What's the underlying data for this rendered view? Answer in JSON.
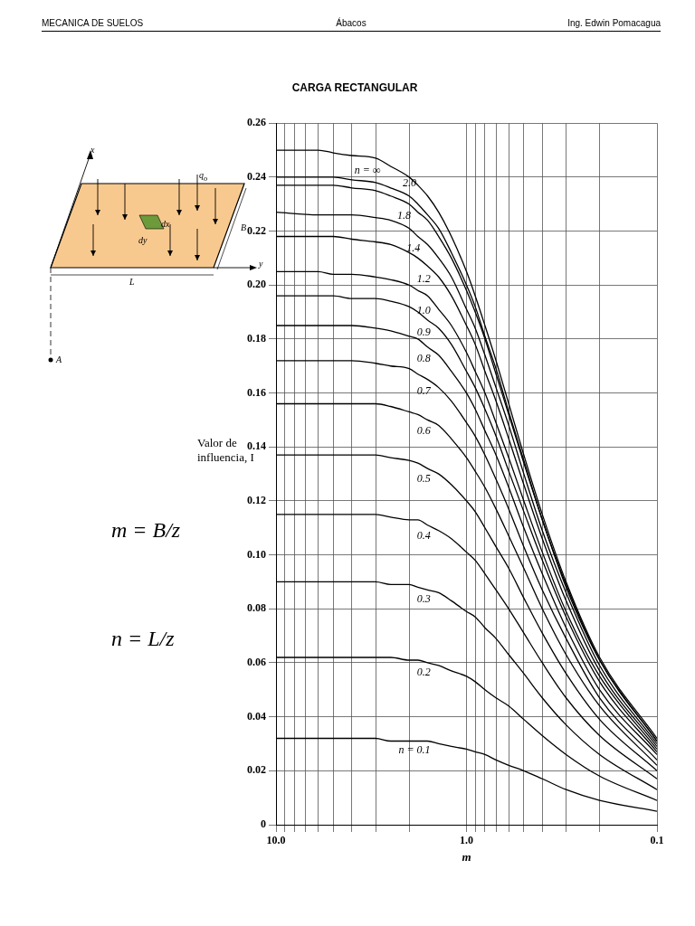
{
  "chart_data": {
    "type": "line",
    "title": "CARGA RECTANGULAR",
    "xlabel": "m",
    "ylabel": "Valor de influencia, I",
    "log": "x",
    "grid": true,
    "legend": false,
    "marker": "none",
    "line_style": "solid",
    "annotations": [
      "MECANICA DE SUELOS",
      "Ábacos",
      "Ing. Edwin Pomacagua",
      "m = B/z",
      "n = L/z",
      "x",
      "y",
      "q$_{o}$",
      "dx",
      "dy",
      "B",
      "L",
      "A"
    ],
    "xlim": [
      10,
      0.1
    ],
    "xticks": [
      {
        "value": 10,
        "label": "10.0"
      },
      {
        "value": 9,
        "label": null
      },
      {
        "value": 8,
        "label": null
      },
      {
        "value": 7,
        "label": null
      },
      {
        "value": 6,
        "label": null
      },
      {
        "value": 5,
        "label": null
      },
      {
        "value": 4,
        "label": null
      },
      {
        "value": 3,
        "label": null
      },
      {
        "value": 2,
        "label": null
      },
      {
        "value": 1,
        "label": "1.0"
      },
      {
        "value": 0.9,
        "label": null
      },
      {
        "value": 0.8,
        "label": null
      },
      {
        "value": 0.7,
        "label": null
      },
      {
        "value": 0.6,
        "label": null
      },
      {
        "value": 0.5,
        "label": null
      },
      {
        "value": 0.4,
        "label": null
      },
      {
        "value": 0.3,
        "label": null
      },
      {
        "value": 0.2,
        "label": null
      },
      0.1
    ],
    "ylim": [
      0,
      0.26
    ],
    "yticks": [
      0,
      0.02,
      0.04,
      0.06,
      0.08,
      {
        "value": 0.1,
        "label": "0.10"
      },
      0.12,
      0.14,
      0.16,
      0.18,
      {
        "value": 0.2,
        "label": "0.20"
      },
      0.22,
      0.24,
      0.26
    ],
    "x": [
      0.1,
      0.2,
      0.3,
      0.4,
      0.5,
      0.6,
      0.7,
      0.8,
      0.9,
      1.0,
      1.2,
      1.4,
      1.6,
      1.8,
      2.0,
      2.5,
      3,
      4,
      5,
      6,
      10
    ],
    "series": [
      {
        "name": "n = ∞",
        "color": "#000000",
        "values": [
          0.032,
          0.062,
          0.09,
          0.115,
          0.137,
          0.156,
          0.172,
          0.185,
          0.196,
          0.205,
          0.218,
          0.227,
          0.233,
          0.237,
          0.24,
          0.244,
          0.247,
          0.248,
          0.249,
          0.25,
          0.25
        ]
      },
      {
        "name": "2.0",
        "color": "#000000",
        "values": [
          0.031,
          0.061,
          0.089,
          0.113,
          0.135,
          0.153,
          0.169,
          0.181,
          0.192,
          0.2,
          0.212,
          0.221,
          0.226,
          0.23,
          0.233,
          0.236,
          0.238,
          0.239,
          0.24,
          0.24,
          0.24
        ]
      },
      {
        "name": "1.8",
        "color": "#000000",
        "values": [
          0.031,
          0.061,
          0.088,
          0.113,
          0.134,
          0.152,
          0.167,
          0.18,
          0.19,
          0.198,
          0.21,
          0.218,
          0.224,
          0.227,
          0.23,
          0.233,
          0.235,
          0.236,
          0.237,
          0.237,
          0.237
        ]
      },
      {
        "name": "1.4",
        "color": "#000000",
        "values": [
          0.03,
          0.059,
          0.086,
          0.109,
          0.13,
          0.148,
          0.162,
          0.174,
          0.184,
          0.191,
          0.203,
          0.21,
          0.215,
          0.218,
          0.221,
          0.224,
          0.225,
          0.226,
          0.226,
          0.226,
          0.227
        ]
      },
      {
        "name": "1.2",
        "color": "#000000",
        "values": [
          0.029,
          0.057,
          0.083,
          0.106,
          0.126,
          0.143,
          0.157,
          0.168,
          0.178,
          0.185,
          0.196,
          0.203,
          0.207,
          0.21,
          0.212,
          0.215,
          0.216,
          0.217,
          0.218,
          0.218,
          0.218
        ]
      },
      {
        "name": "1.0",
        "color": "#000000",
        "values": [
          0.028,
          0.055,
          0.079,
          0.101,
          0.12,
          0.136,
          0.149,
          0.16,
          0.168,
          0.175,
          0.185,
          0.191,
          0.196,
          0.198,
          0.2,
          0.202,
          0.203,
          0.204,
          0.204,
          0.205,
          0.205
        ]
      },
      {
        "name": "0.9",
        "color": "#000000",
        "values": [
          0.027,
          0.053,
          0.077,
          0.098,
          0.116,
          0.131,
          0.144,
          0.154,
          0.162,
          0.168,
          0.178,
          0.184,
          0.187,
          0.19,
          0.192,
          0.194,
          0.195,
          0.195,
          0.196,
          0.196,
          0.196
        ]
      },
      {
        "name": "0.8",
        "color": "#000000",
        "values": [
          0.026,
          0.05,
          0.073,
          0.093,
          0.11,
          0.125,
          0.137,
          0.146,
          0.154,
          0.16,
          0.168,
          0.174,
          0.177,
          0.18,
          0.181,
          0.183,
          0.184,
          0.185,
          0.185,
          0.185,
          0.185
        ]
      },
      {
        "name": "0.7",
        "color": "#000000",
        "values": [
          0.024,
          0.047,
          0.069,
          0.087,
          0.103,
          0.117,
          0.128,
          0.137,
          0.144,
          0.149,
          0.157,
          0.162,
          0.165,
          0.167,
          0.169,
          0.17,
          0.171,
          0.172,
          0.172,
          0.172,
          0.172
        ]
      },
      {
        "name": "0.6",
        "color": "#000000",
        "values": [
          0.022,
          0.044,
          0.063,
          0.08,
          0.095,
          0.107,
          0.117,
          0.125,
          0.131,
          0.136,
          0.143,
          0.148,
          0.15,
          0.152,
          0.153,
          0.155,
          0.156,
          0.156,
          0.156,
          0.156,
          0.156
        ]
      },
      {
        "name": "0.5",
        "color": "#000000",
        "values": [
          0.02,
          0.039,
          0.056,
          0.071,
          0.084,
          0.095,
          0.103,
          0.11,
          0.116,
          0.12,
          0.126,
          0.13,
          0.132,
          0.134,
          0.135,
          0.136,
          0.137,
          0.137,
          0.137,
          0.137,
          0.137
        ]
      },
      {
        "name": "0.4",
        "color": "#000000",
        "values": [
          0.017,
          0.033,
          0.047,
          0.06,
          0.071,
          0.08,
          0.087,
          0.093,
          0.098,
          0.101,
          0.106,
          0.109,
          0.111,
          0.113,
          0.113,
          0.114,
          0.115,
          0.115,
          0.115,
          0.115,
          0.115
        ]
      },
      {
        "name": "0.3",
        "color": "#000000",
        "values": [
          0.013,
          0.026,
          0.037,
          0.047,
          0.056,
          0.063,
          0.069,
          0.073,
          0.077,
          0.079,
          0.083,
          0.086,
          0.087,
          0.088,
          0.089,
          0.089,
          0.09,
          0.09,
          0.09,
          0.09,
          0.09
        ]
      },
      {
        "name": "0.2",
        "color": "#000000",
        "values": [
          0.009,
          0.018,
          0.026,
          0.033,
          0.039,
          0.044,
          0.047,
          0.05,
          0.053,
          0.055,
          0.057,
          0.059,
          0.06,
          0.061,
          0.061,
          0.062,
          0.062,
          0.062,
          0.062,
          0.062,
          0.062
        ]
      },
      {
        "name": "n = 0.1",
        "color": "#000000",
        "values": [
          0.005,
          0.009,
          0.013,
          0.017,
          0.02,
          0.022,
          0.024,
          0.026,
          0.027,
          0.028,
          0.029,
          0.03,
          0.031,
          0.031,
          0.031,
          0.031,
          0.032,
          0.032,
          0.032,
          0.032,
          0.032
        ]
      }
    ]
  }
}
